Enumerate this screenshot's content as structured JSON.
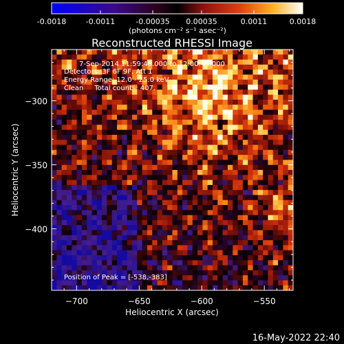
{
  "colorbar": {
    "ticks": [
      {
        "value": -0.0018,
        "label": "-0.0018"
      },
      {
        "value": -0.0011,
        "label": "-0.0011"
      },
      {
        "value": -0.00035,
        "label": "-0.00035"
      },
      {
        "value": 0.00035,
        "label": "0.00035"
      },
      {
        "value": 0.0011,
        "label": "0.0011"
      },
      {
        "value": 0.0018,
        "label": "0.0018"
      }
    ],
    "range": [
      -0.0018,
      0.0018
    ],
    "unit_label": "(photons cm⁻² s⁻¹ asec⁻²)"
  },
  "chart_data": {
    "type": "heatmap",
    "title": "Reconstructed RHESSI Image",
    "xlabel": "Heliocentric X (arcsec)",
    "ylabel": "Heliocentric Y (arcsec)",
    "xlim": [
      -720,
      -527
    ],
    "ylim": [
      -448,
      -260
    ],
    "x_ticks": [
      -700,
      -650,
      -600,
      -550
    ],
    "y_ticks": [
      -300,
      -350,
      -400
    ],
    "colormap": "RHESSI (blue-purple-red-yellow-white)",
    "peak": {
      "x": -538,
      "y": -383
    },
    "annotations": {
      "time": "7-Sep-2014 11:59:48.000 to 12:00:44.000",
      "detectors": "Detectors: 3F 6F 9F, Att 1",
      "energy": "Energy Range: 12.0 - 25.0 keV",
      "clean": "Clean     Total counts: 407.",
      "peak_label": "Position of Peak = [-538,-383]"
    }
  },
  "footer": {
    "date": "16-May-2022 22:40"
  }
}
